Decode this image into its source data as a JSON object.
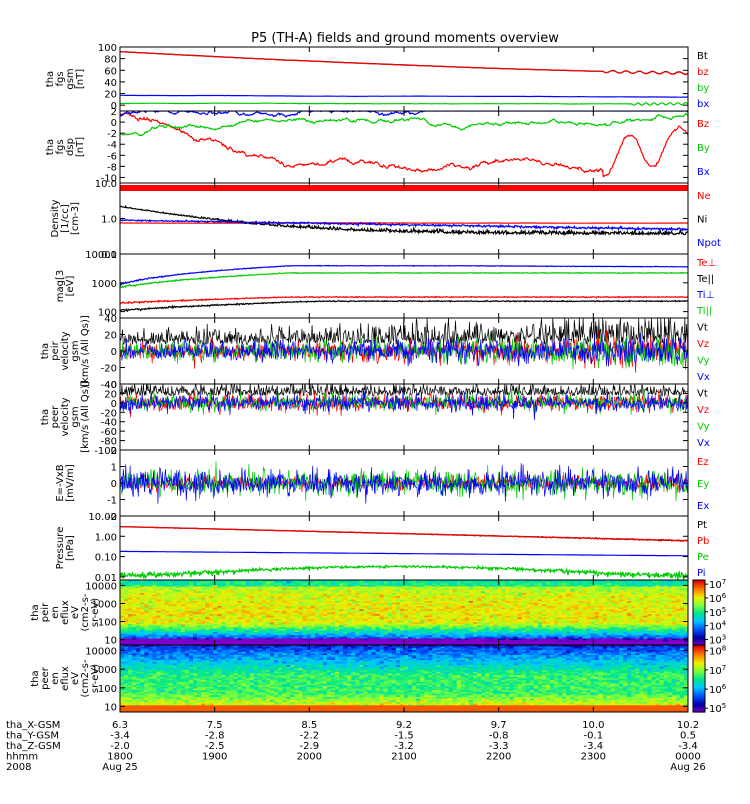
{
  "figure": {
    "title": "P5 (TH-A) fields and ground moments overview"
  },
  "chart_data": [
    {
      "type": "line",
      "ylabel": [
        "tha",
        "fgs",
        "gsm",
        "[nT]"
      ],
      "ylim": [
        -10,
        100
      ],
      "yticks": [
        0,
        20,
        40,
        60,
        80,
        100
      ],
      "series": [
        {
          "name": "Bt",
          "color": "#000000"
        },
        {
          "name": "bz",
          "color": "#ff0000"
        },
        {
          "name": "by",
          "color": "#00cc00"
        },
        {
          "name": "bx",
          "color": "#0000ff"
        }
      ]
    },
    {
      "type": "line",
      "ylabel": [
        "tha",
        "fgs",
        "dsp",
        "[nT]"
      ],
      "ylim": [
        -11,
        2
      ],
      "yticks": [
        -10,
        -8,
        -6,
        -4,
        -2,
        0,
        2
      ],
      "series": [
        {
          "name": "Bz",
          "color": "#ff0000"
        },
        {
          "name": "By",
          "color": "#00cc00"
        },
        {
          "name": "Bx",
          "color": "#0000ff"
        }
      ]
    },
    {
      "type": "line",
      "ylabel": [
        "Density",
        "[1/cc]",
        "[cm-3]"
      ],
      "log": true,
      "ylim": [
        0.1,
        10
      ],
      "yticks": [
        0.1,
        1.0,
        10.0
      ],
      "yticklabels": [
        "0.1",
        "1.0",
        "10.0"
      ],
      "series": [
        {
          "name": "Ne",
          "color": "#ff0000"
        },
        {
          "name": "Ni",
          "color": "#000000"
        },
        {
          "name": "Npot",
          "color": "#0000ff"
        }
      ]
    },
    {
      "type": "line",
      "ylabel": [
        "mag[3",
        "[eV]"
      ],
      "log": true,
      "ylim": [
        60,
        10000
      ],
      "yticks": [
        100,
        1000,
        10000
      ],
      "yticklabels": [
        "100",
        "1000",
        "10000"
      ],
      "series": [
        {
          "name": "Te⊥",
          "color": "#ff0000"
        },
        {
          "name": "Te||",
          "color": "#000000"
        },
        {
          "name": "Ti⊥",
          "color": "#0000ff"
        },
        {
          "name": "Ti||",
          "color": "#00cc00"
        }
      ]
    },
    {
      "type": "line",
      "ylabel": [
        "tha",
        "peir",
        "velocity",
        "gsm",
        "[km/s (All Qs)]"
      ],
      "ylim": [
        -40,
        40
      ],
      "yticks": [
        -40,
        -20,
        0,
        20,
        40
      ],
      "series": [
        {
          "name": "Vt",
          "color": "#000000"
        },
        {
          "name": "Vz",
          "color": "#ff0000"
        },
        {
          "name": "Vy",
          "color": "#00cc00"
        },
        {
          "name": "Vx",
          "color": "#0000ff"
        }
      ]
    },
    {
      "type": "line",
      "ylabel": [
        "tha",
        "peer",
        "velocity",
        "gsm",
        "[km/s (All Qs)]"
      ],
      "ylim": [
        -100,
        40
      ],
      "yticks": [
        -100,
        -80,
        -60,
        -40,
        -20,
        0,
        20,
        40
      ],
      "series": [
        {
          "name": "Vt",
          "color": "#000000"
        },
        {
          "name": "Vz",
          "color": "#ff0000"
        },
        {
          "name": "Vy",
          "color": "#00cc00"
        },
        {
          "name": "Vx",
          "color": "#0000ff"
        }
      ]
    },
    {
      "type": "line",
      "ylabel": [
        "E=-VxB",
        "[mV/m]"
      ],
      "ylim": [
        -2,
        2
      ],
      "yticks": [
        -2,
        -1,
        0,
        1,
        2
      ],
      "series": [
        {
          "name": "Ez",
          "color": "#ff0000"
        },
        {
          "name": "Ey",
          "color": "#00cc00"
        },
        {
          "name": "Ex",
          "color": "#0000ff"
        }
      ]
    },
    {
      "type": "line",
      "ylabel": [
        "Pressure",
        "[nPa]"
      ],
      "log": true,
      "ylim": [
        0.007,
        10
      ],
      "yticks": [
        0.01,
        0.1,
        1.0,
        10.0
      ],
      "yticklabels": [
        "0.01",
        "0.10",
        "1.00",
        "10.00"
      ],
      "series": [
        {
          "name": "Pt",
          "color": "#000000"
        },
        {
          "name": "Pb",
          "color": "#ff0000"
        },
        {
          "name": "Pe",
          "color": "#00cc00"
        },
        {
          "name": "Pi",
          "color": "#0000ff"
        }
      ]
    },
    {
      "type": "heatmap",
      "ylabel": [
        "tha",
        "peir",
        "en",
        "eflux",
        "eV",
        "(cm2-s-",
        "sr-eV)"
      ],
      "log": true,
      "ylim": [
        5,
        20000
      ],
      "yticks": [
        10,
        100,
        1000,
        10000
      ],
      "yticklabels": [
        "10",
        "100",
        "1000",
        "10000"
      ],
      "colorbar": {
        "ticks": [
          "10^3",
          "10^4",
          "10^5",
          "10^6",
          "10^7"
        ],
        "min_exp": 2.6,
        "max_exp": 7.3
      }
    },
    {
      "type": "heatmap",
      "ylabel": [
        "tha",
        "peer",
        "en",
        "eflux",
        "eV",
        "(cm2-s-",
        "sr-eV)"
      ],
      "log": true,
      "ylim": [
        5,
        20000
      ],
      "yticks": [
        10,
        100,
        1000,
        10000
      ],
      "yticklabels": [
        "10",
        "100",
        "1000",
        "10000"
      ],
      "colorbar": {
        "ticks": [
          "10^5",
          "10^6",
          "10^7",
          "10^8"
        ],
        "min_exp": 4.8,
        "max_exp": 8.3
      }
    }
  ],
  "x_axis": {
    "tick_fractions": [
      0,
      0.1667,
      0.3333,
      0.5,
      0.6667,
      0.8333,
      1.0
    ],
    "rows": [
      {
        "label": "tha_X-GSM",
        "values": [
          "6.3",
          "7.5",
          "8.5",
          "9.2",
          "9.7",
          "10.0",
          "10.2"
        ]
      },
      {
        "label": "tha_Y-GSM",
        "values": [
          "-3.4",
          "-2.8",
          "-2.2",
          "-1.5",
          "-0.8",
          "-0.1",
          "0.5"
        ]
      },
      {
        "label": "tha_Z-GSM",
        "values": [
          "-2.0",
          "-2.5",
          "-2.9",
          "-3.2",
          "-3.3",
          "-3.4",
          "-3.4"
        ]
      },
      {
        "label": "hhmm",
        "values": [
          "1800",
          "1900",
          "2000",
          "2100",
          "2200",
          "2300",
          "0000"
        ]
      },
      {
        "label": "2008",
        "values": [
          "Aug 25",
          "",
          "",
          "",
          "",
          "",
          "Aug 26"
        ]
      }
    ]
  }
}
